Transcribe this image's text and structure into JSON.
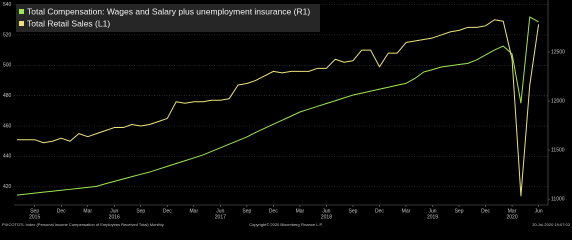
{
  "chart_data": {
    "type": "line",
    "categories": [
      null,
      null,
      "Sep",
      null,
      null,
      "Dec",
      null,
      null,
      "Mar",
      null,
      null,
      "Jun",
      null,
      null,
      "Sep",
      null,
      null,
      "Dec",
      null,
      null,
      "Mar",
      null,
      null,
      "Jun",
      null,
      null,
      "Sep",
      null,
      null,
      "Dec",
      null,
      null,
      "Mar",
      null,
      null,
      "Jun",
      null,
      null,
      "Sep",
      null,
      null,
      "Dec",
      null,
      null,
      "Mar",
      null,
      null,
      "Jun",
      null,
      null,
      "Sep",
      null,
      null,
      "Dec",
      null,
      null,
      "Mar",
      null,
      null,
      "Jun"
    ],
    "category_years": [
      null,
      null,
      "2015",
      null,
      null,
      null,
      null,
      null,
      null,
      null,
      null,
      "2016",
      null,
      null,
      null,
      null,
      null,
      null,
      null,
      null,
      null,
      null,
      null,
      "2017",
      null,
      null,
      null,
      null,
      null,
      null,
      null,
      null,
      null,
      null,
      null,
      "2018",
      null,
      null,
      null,
      null,
      null,
      null,
      null,
      null,
      null,
      null,
      null,
      "2019",
      null,
      null,
      null,
      null,
      null,
      null,
      null,
      null,
      "2020",
      null,
      null,
      null
    ],
    "series": [
      {
        "name": "Total Compensation: Wages and Salary plus unemployment insurance (R1)",
        "color": "#9ee64f",
        "axis": "y2",
        "values": [
          11041,
          11051,
          11061,
          11071,
          11080,
          11090,
          11100,
          11110,
          11120,
          11130,
          11157,
          11181,
          11205,
          11229,
          11253,
          11276,
          11305,
          11334,
          11363,
          11391,
          11420,
          11449,
          11486,
          11523,
          11560,
          11597,
          11634,
          11680,
          11722,
          11764,
          11805,
          11846,
          11888,
          11917,
          11946,
          11975,
          12003,
          12032,
          12061,
          12081,
          12101,
          12121,
          12141,
          12161,
          12180,
          12230,
          12296,
          12320,
          12347,
          12360,
          12372,
          12384,
          12420,
          12470,
          12520,
          12560,
          12480,
          11980,
          12857,
          12806
        ]
      },
      {
        "name": "Total Retail Sales (L1)",
        "color": "#ece27c",
        "axis": "y",
        "values": [
          451,
          451,
          451,
          449,
          450,
          452,
          450,
          455,
          453,
          455,
          457,
          459,
          459,
          461,
          460,
          461,
          463,
          465,
          476,
          475,
          476,
          476,
          477,
          477,
          478,
          487,
          488,
          490,
          493,
          496,
          495,
          496,
          496,
          496,
          498,
          498,
          504,
          502,
          503,
          510,
          510,
          499,
          508,
          508,
          515,
          516,
          517,
          518,
          520,
          522,
          523,
          525,
          525,
          526,
          530,
          529,
          504,
          414,
          487,
          527
        ]
      }
    ],
    "ylim": [
      408,
      543
    ],
    "yticks": [
      420,
      440,
      460,
      480,
      500,
      520,
      540
    ],
    "y2lim": [
      10940,
      13030
    ],
    "y2ticks": [
      11000,
      11500,
      12000,
      12500
    ],
    "grid": true,
    "legend": "top-left",
    "footer_left": "PIXCOTOTL Index (Personal Income Compensation of Employees Received Total)  Monthly",
    "footer_center": "Copyright© 2020 Bloomberg Finance L.P.",
    "footer_right": "20-Jul-2020 19:07:02"
  }
}
